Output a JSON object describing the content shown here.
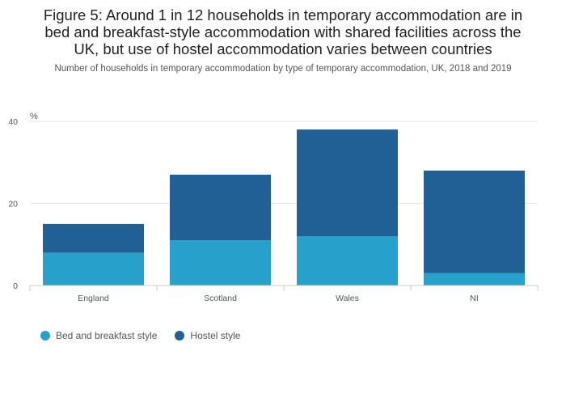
{
  "title_lines": [
    "Figure 5: Around 1 in 12 households in temporary accommodation are in",
    "bed and breakfast-style accommodation with shared facilities across the",
    "UK, but use of hostel accommodation varies between countries"
  ],
  "subtitle": "Number of households in temporary accommodation by type of temporary accommodation, UK, 2018 and 2019",
  "chart_data": {
    "type": "bar",
    "stacked": true,
    "title": "Figure 5: Around 1 in 12 households in temporary accommodation are in bed and breakfast-style accommodation with shared facilities across the UK, but use of hostel accommodation varies between countries",
    "subtitle": "Number of households in temporary accommodation by type of temporary accommodation, UK, 2018 and 2019",
    "categories": [
      "England",
      "Scotland",
      "Wales",
      "NI"
    ],
    "series": [
      {
        "name": "Bed and breakfast style",
        "color": "#27a0cc",
        "values": [
          8,
          11,
          12,
          3
        ]
      },
      {
        "name": "Hostel style",
        "color": "#206095",
        "values": [
          7,
          16,
          26,
          25
        ]
      }
    ],
    "ylabel": "%",
    "xlabel": "",
    "ylim": [
      0,
      40
    ],
    "yticks": [
      0,
      20,
      40
    ],
    "grid": true,
    "legend_position": "bottom-left"
  }
}
